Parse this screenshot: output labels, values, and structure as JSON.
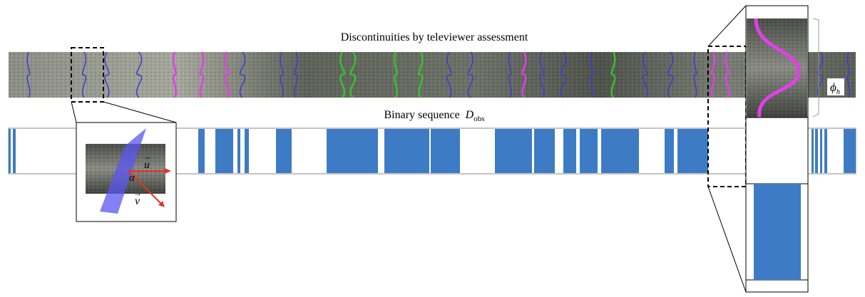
{
  "labels": {
    "top_strip": "Discontinuities by televiewer assessment",
    "binary_text": "Binary sequence",
    "binary_symbol": "D",
    "binary_subscript": "obs",
    "vector_u": "u",
    "vector_v": "v",
    "angle": "α",
    "phase": "ϕ",
    "phase_subscript": "h"
  }
}
